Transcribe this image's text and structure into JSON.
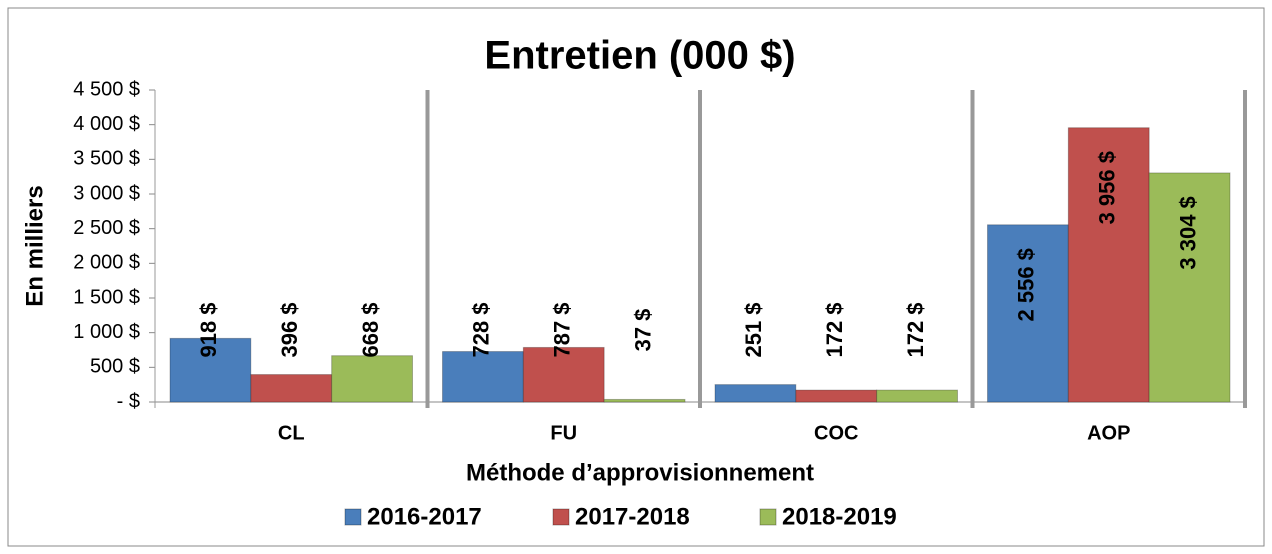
{
  "chart_data": {
    "type": "bar",
    "title": "Entretien (000 $)",
    "y_label": "En milliers",
    "x_label": "Méthode d’approvisionnement",
    "categories": [
      "CL",
      "FU",
      "COC",
      "AOP"
    ],
    "series": [
      {
        "name": "2016-2017",
        "color": "#4a7ebb",
        "values": [
          918,
          728,
          251,
          2556
        ],
        "value_labels": [
          "918 $",
          "728 $",
          "251 $",
          "2 556 $"
        ]
      },
      {
        "name": "2017-2018",
        "color": "#c0504d",
        "values": [
          396,
          787,
          172,
          3956
        ],
        "value_labels": [
          "396 $",
          "787 $",
          "172 $",
          "3 956 $"
        ]
      },
      {
        "name": "2018-2019",
        "color": "#9bbb59",
        "values": [
          668,
          37,
          172,
          3304
        ],
        "value_labels": [
          "668 $",
          "37 $",
          "172 $",
          "3 304 $"
        ]
      }
    ],
    "ylim": [
      0,
      4500
    ],
    "yticks": [
      {
        "value": 0,
        "label": "-   $"
      },
      {
        "value": 500,
        "label": "500 $"
      },
      {
        "value": 1000,
        "label": "1 000 $"
      },
      {
        "value": 1500,
        "label": "1 500 $"
      },
      {
        "value": 2000,
        "label": "2 000 $"
      },
      {
        "value": 2500,
        "label": "2 500 $"
      },
      {
        "value": 3000,
        "label": "3 000 $"
      },
      {
        "value": 3500,
        "label": "3 500 $"
      },
      {
        "value": 4000,
        "label": "4 000 $"
      },
      {
        "value": 4500,
        "label": "4 500 $"
      }
    ],
    "legend": "bottom"
  }
}
